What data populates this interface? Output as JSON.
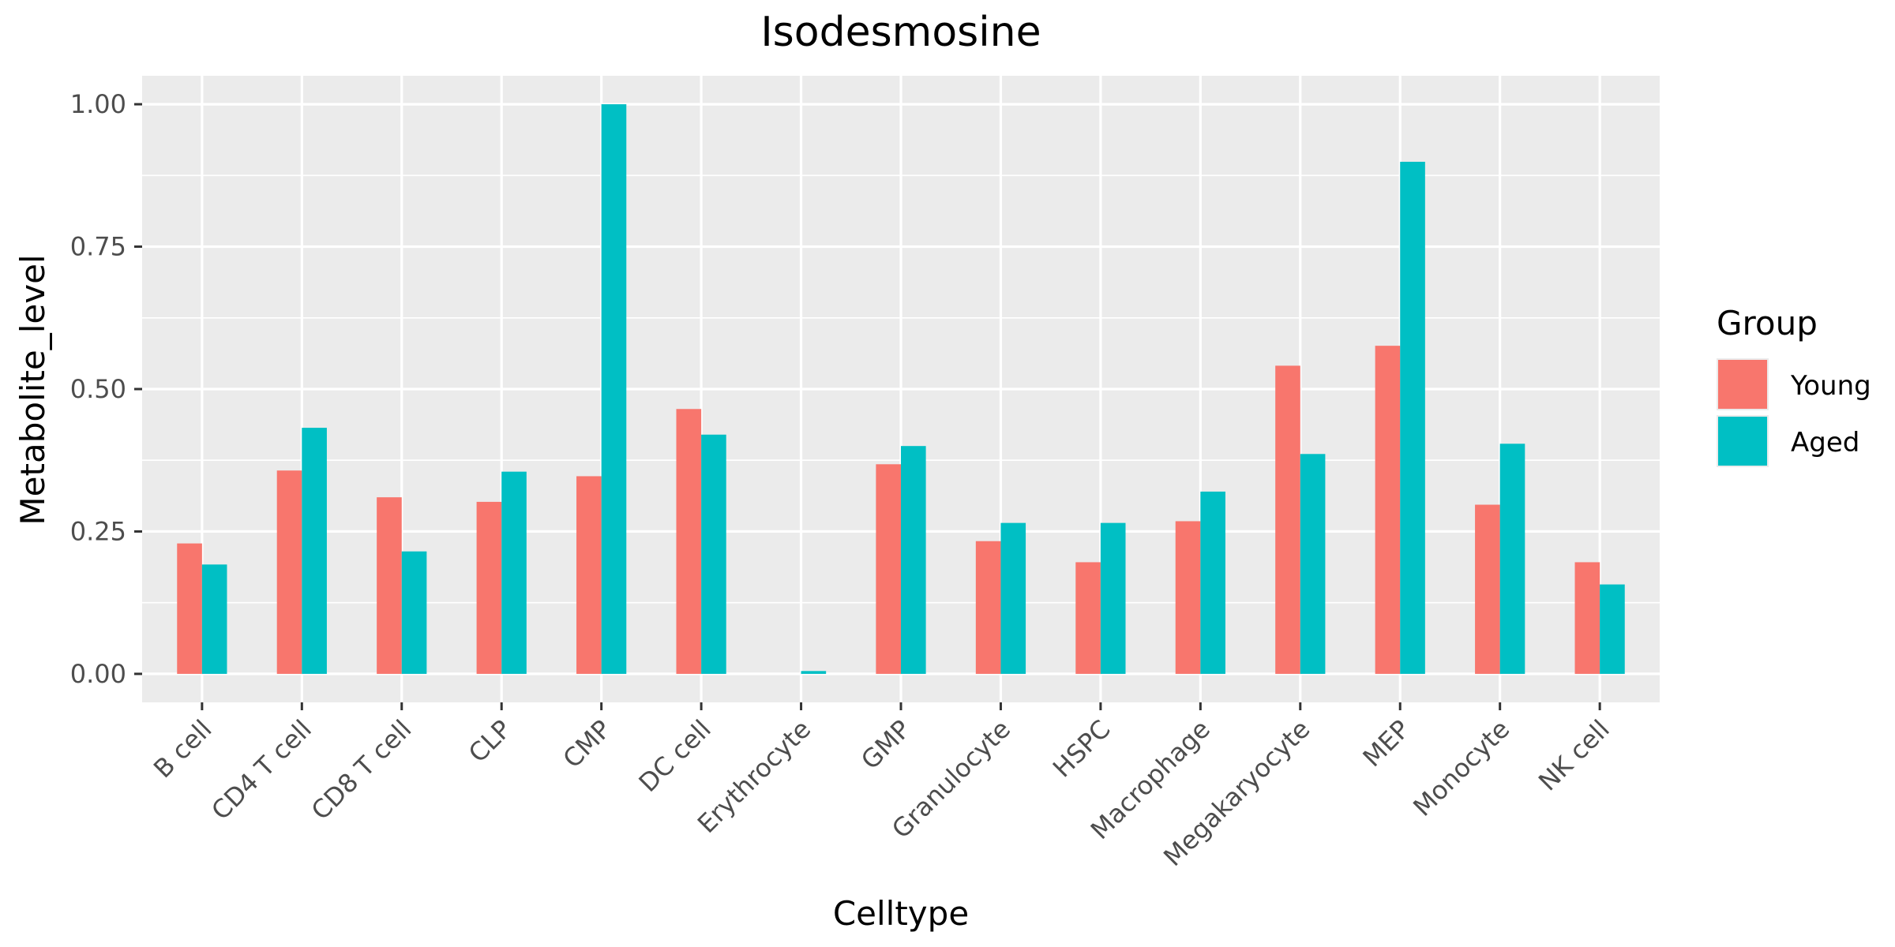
{
  "chart_data": {
    "type": "bar",
    "title": "Isodesmosine",
    "xlabel": "Celltype",
    "ylabel": "Metabolite_level",
    "ylim": [
      -0.05,
      1.05
    ],
    "yticks": [
      "0.00",
      "0.25",
      "0.50",
      "0.75",
      "1.00"
    ],
    "ytick_values": [
      0,
      0.25,
      0.5,
      0.75,
      1.0
    ],
    "grid": true,
    "legend": {
      "title": "Group",
      "position": "right"
    },
    "categories": [
      "B cell",
      "CD4 T cell",
      "CD8 T cell",
      "CLP",
      "CMP",
      "DC cell",
      "Erythrocyte",
      "GMP",
      "Granulocyte",
      "HSPC",
      "Macrophage",
      "Megakaryocyte",
      "MEP",
      "Monocyte",
      "NK cell"
    ],
    "series": [
      {
        "name": "Young",
        "color": "#F8766D",
        "values": [
          0.229,
          0.357,
          0.31,
          0.302,
          0.347,
          0.465,
          0.0,
          0.368,
          0.233,
          0.196,
          0.268,
          0.541,
          0.576,
          0.297,
          0.196
        ]
      },
      {
        "name": "Aged",
        "color": "#00BFC4",
        "values": [
          0.192,
          0.432,
          0.215,
          0.355,
          1.0,
          0.42,
          0.005,
          0.4,
          0.265,
          0.265,
          0.32,
          0.386,
          0.899,
          0.404,
          0.157
        ]
      }
    ],
    "colors": {
      "panel": "#EBEBEB",
      "grid": "#FFFFFF",
      "tick": "#333333"
    }
  }
}
